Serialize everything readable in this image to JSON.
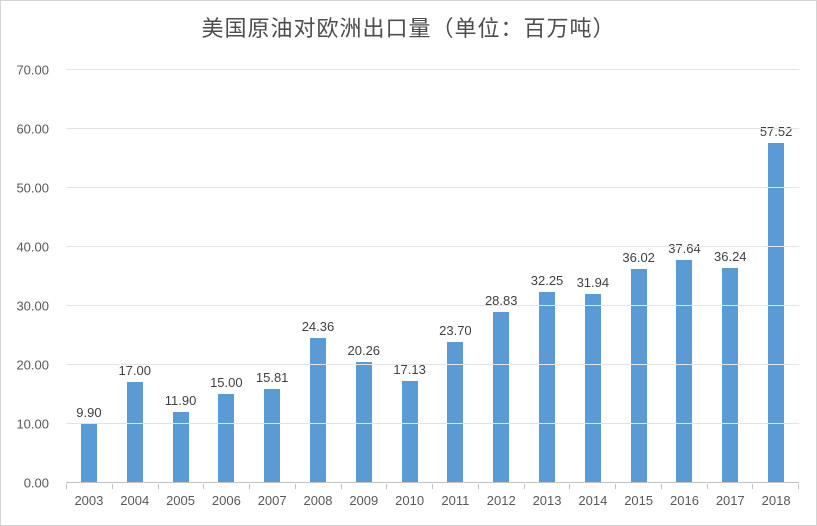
{
  "chart_data": {
    "type": "bar",
    "title": "美国原油对欧洲出口量（单位：百万吨）",
    "categories": [
      "2003",
      "2004",
      "2005",
      "2006",
      "2007",
      "2008",
      "2009",
      "2010",
      "2011",
      "2012",
      "2013",
      "2014",
      "2015",
      "2016",
      "2017",
      "2018"
    ],
    "values": [
      9.9,
      17.0,
      11.9,
      15.0,
      15.81,
      24.36,
      20.26,
      17.13,
      23.7,
      28.83,
      32.25,
      31.94,
      36.02,
      37.64,
      36.24,
      57.52
    ],
    "value_labels": [
      "9.90",
      "17.00",
      "11.90",
      "15.00",
      "15.81",
      "24.36",
      "20.26",
      "17.13",
      "23.70",
      "28.83",
      "32.25",
      "31.94",
      "36.02",
      "37.64",
      "36.24",
      "57.52"
    ],
    "xlabel": "",
    "ylabel": "",
    "ylim": [
      0,
      70
    ],
    "ytick_interval": 10,
    "ytick_labels": [
      "0.00",
      "10.00",
      "20.00",
      "30.00",
      "40.00",
      "50.00",
      "60.00",
      "70.00"
    ],
    "grid": true,
    "legend": "none",
    "bar_color": "#5B9BD5"
  }
}
